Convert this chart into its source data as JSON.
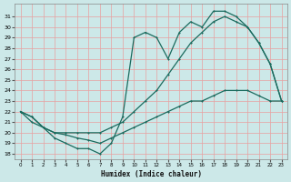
{
  "xlabel": "Humidex (Indice chaleur)",
  "bg_color": "#cce8e8",
  "line_color": "#1a6b5e",
  "grid_color": "#e8a0a0",
  "ylim": [
    17.5,
    32.2
  ],
  "xlim": [
    -0.5,
    23.5
  ],
  "yticks": [
    18,
    19,
    20,
    21,
    22,
    23,
    24,
    25,
    26,
    27,
    28,
    29,
    30,
    31
  ],
  "xticks": [
    0,
    1,
    2,
    3,
    4,
    5,
    6,
    7,
    8,
    9,
    10,
    11,
    12,
    13,
    14,
    15,
    16,
    17,
    18,
    19,
    20,
    21,
    22,
    23
  ],
  "line1_x": [
    0,
    1,
    2,
    3,
    4,
    5,
    6,
    7,
    8,
    9,
    10,
    11,
    12,
    13,
    14,
    15,
    16,
    17,
    18,
    19,
    20,
    21,
    22,
    23
  ],
  "line1_y": [
    22.0,
    21.0,
    20.5,
    20.0,
    19.8,
    19.5,
    19.3,
    19.0,
    19.5,
    20.0,
    20.5,
    21.0,
    21.5,
    22.0,
    22.5,
    23.0,
    23.0,
    23.5,
    24.0,
    24.0,
    24.0,
    23.5,
    23.0,
    23.0
  ],
  "line2_x": [
    0,
    1,
    2,
    3,
    4,
    5,
    6,
    7,
    8,
    9,
    10,
    11,
    12,
    13,
    14,
    15,
    16,
    17,
    18,
    19,
    20,
    21,
    22,
    23
  ],
  "line2_y": [
    22.0,
    21.5,
    20.5,
    20.0,
    20.0,
    20.0,
    20.0,
    20.0,
    20.5,
    21.0,
    22.0,
    23.0,
    24.0,
    25.5,
    27.0,
    28.5,
    29.5,
    30.5,
    31.0,
    30.5,
    30.0,
    28.5,
    26.5,
    23.0
  ],
  "line3_x": [
    0,
    1,
    2,
    3,
    4,
    5,
    6,
    7,
    8,
    9,
    10,
    11,
    12,
    13,
    14,
    15,
    16,
    17,
    18,
    19,
    20,
    21,
    22,
    23
  ],
  "line3_y": [
    22.0,
    21.5,
    20.5,
    19.5,
    19.0,
    18.5,
    18.5,
    18.0,
    19.0,
    21.5,
    29.0,
    29.5,
    29.0,
    27.0,
    29.5,
    30.5,
    30.0,
    31.5,
    31.5,
    31.0,
    30.0,
    28.5,
    26.5,
    23.0
  ]
}
